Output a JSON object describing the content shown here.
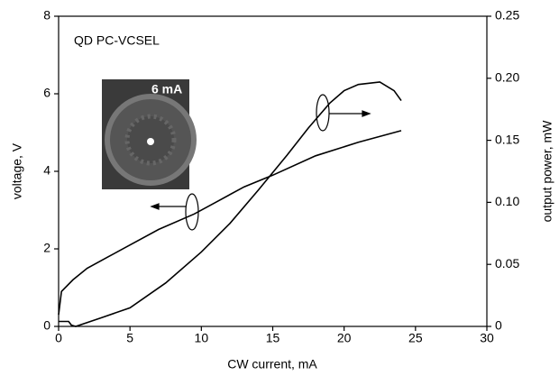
{
  "chart_data": {
    "type": "line",
    "xlabel": "CW current, mA",
    "ylabel": "voltage, V",
    "y2label": "output power, mW",
    "annotations": [
      "QD PC-VCSEL",
      "6 mA"
    ],
    "xlim": [
      0,
      30
    ],
    "xticks": [
      0,
      5,
      10,
      15,
      20,
      25,
      30
    ],
    "ylim": [
      0,
      8
    ],
    "yticks": [
      0,
      2,
      4,
      6,
      8
    ],
    "y2lim": [
      0,
      0.25
    ],
    "y2ticks": [
      0,
      0.05,
      {
        "value": 0.1,
        "label": "0.10"
      },
      0.15,
      {
        "value": 0.2,
        "label": "0.20"
      },
      0.25
    ],
    "series": [
      {
        "color": "#000000",
        "x": [
          0,
          0.2,
          1,
          2,
          3.5,
          5,
          7,
          9.5,
          11,
          13,
          15,
          18,
          21,
          24
        ],
        "values": [
          0.3,
          0.9,
          1.2,
          1.5,
          1.8,
          2.1,
          2.5,
          2.9,
          3.2,
          3.6,
          3.9,
          4.4,
          4.75,
          5.05
        ]
      },
      {
        "color": "#000000",
        "axis": "y2",
        "x": [
          0,
          0.7,
          0.9,
          1.2,
          3,
          5,
          7.5,
          10,
          12,
          14,
          16,
          17.5,
          19,
          20,
          21,
          22.5,
          23.5,
          24
        ],
        "values": [
          0.004,
          0.004,
          0.001,
          0,
          0.007,
          0.015,
          0.035,
          0.06,
          0.083,
          0.11,
          0.138,
          0.16,
          0.18,
          0.19,
          0.195,
          0.197,
          0.19,
          0.182
        ]
      }
    ]
  }
}
